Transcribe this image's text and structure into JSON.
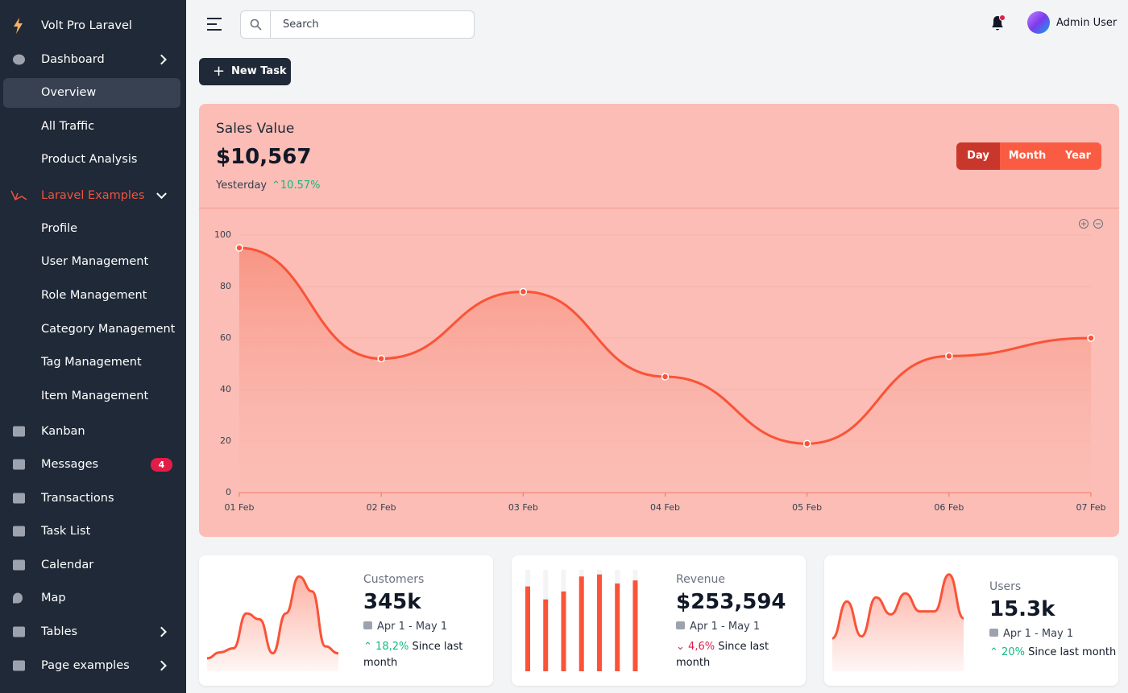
{
  "sidebar": {
    "brand": "Volt Pro Laravel",
    "items": [
      "Dashboard",
      "Overview",
      "All Traffic",
      "Product Analysis",
      "Laravel Examples",
      "Profile",
      "User Management",
      "Role Management",
      "Category Management",
      "Tag Management",
      "Item Management",
      "Kanban",
      "Messages",
      "Transactions",
      "Task List",
      "Calendar",
      "Map",
      "Tables",
      "Page examples"
    ],
    "messages_badge": 4
  },
  "topbar": {
    "search": "Search",
    "user": "Admin User"
  },
  "new_task": "New Task",
  "sales": {
    "title": "Sales Value",
    "value": "$10,567",
    "period": "Yesterday",
    "change": "10.57%",
    "tabs": [
      "Day",
      "Month",
      "Year"
    ],
    "chart": {
      "type": "line",
      "categories": [
        "01 Feb",
        "02 Feb",
        "03 Feb",
        "04 Feb",
        "05 Feb",
        "06 Feb",
        "07 Feb"
      ],
      "values": [
        95,
        52,
        78,
        45,
        19,
        53,
        60
      ],
      "ylim": [
        0,
        100
      ],
      "yticks": [
        0,
        20,
        40,
        60,
        80,
        100
      ],
      "grid": true,
      "color": "#fa5337"
    }
  },
  "cards": [
    {
      "title": "Customers",
      "value": "345k",
      "date": "Apr 1 - May 1",
      "change": "18,2%",
      "change_text": "Since last month",
      "trend": "up",
      "chart": {
        "type": "area",
        "values": [
          13,
          19,
          23,
          58,
          52,
          18,
          58,
          95,
          80,
          25,
          18
        ],
        "ylim": [
          0,
          100
        ],
        "color": "#fa5337"
      }
    },
    {
      "title": "Revenue",
      "value": "$253,594",
      "date": "Apr 1 - May 1",
      "change": "4,6%",
      "change_text": "Since last month",
      "trend": "down",
      "chart": {
        "type": "bar",
        "values": [
          85,
          72,
          80,
          95,
          97,
          88,
          91
        ],
        "ylim": [
          0,
          100
        ],
        "color": "#fa5337"
      }
    },
    {
      "title": "Users",
      "value": "15.3k",
      "date": "Apr 1 - May 1",
      "change": "20%",
      "change_text": "Since last month",
      "trend": "up",
      "chart": {
        "type": "area",
        "values": [
          33,
          70,
          35,
          74,
          57,
          78,
          60,
          60,
          97,
          53
        ],
        "ylim": [
          0,
          100
        ],
        "color": "#fa5337"
      }
    }
  ]
}
